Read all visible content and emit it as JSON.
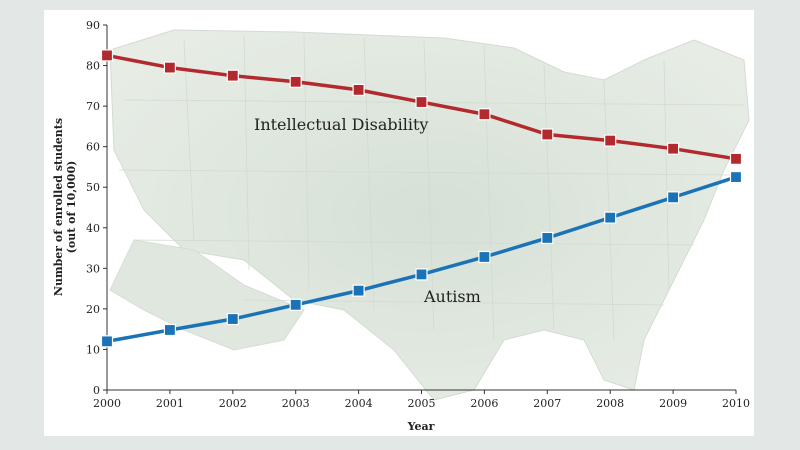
{
  "chart_data": {
    "type": "line",
    "x": [
      2000,
      2001,
      2002,
      2003,
      2004,
      2005,
      2006,
      2007,
      2008,
      2009,
      2010
    ],
    "series": [
      {
        "name": "Intellectual Disability",
        "color": "#b22a2e",
        "values": [
          82.5,
          79.5,
          77.5,
          76,
          74,
          71,
          68,
          63,
          61.5,
          59.5,
          57
        ]
      },
      {
        "name": "Autism",
        "color": "#1a73b6",
        "values": [
          12,
          14.8,
          17.5,
          21,
          24.5,
          28.5,
          32.8,
          37.5,
          42.5,
          47.5,
          52.5
        ]
      }
    ],
    "xlabel": "Year",
    "ylabel_line1": "Number of enrolled students",
    "ylabel_line2": "(out of 10,000)",
    "ylim": [
      0,
      90
    ],
    "yticks": [
      0,
      10,
      20,
      30,
      40,
      50,
      60,
      70,
      80,
      90
    ],
    "background": "faded map of the United States",
    "grid": false
  }
}
